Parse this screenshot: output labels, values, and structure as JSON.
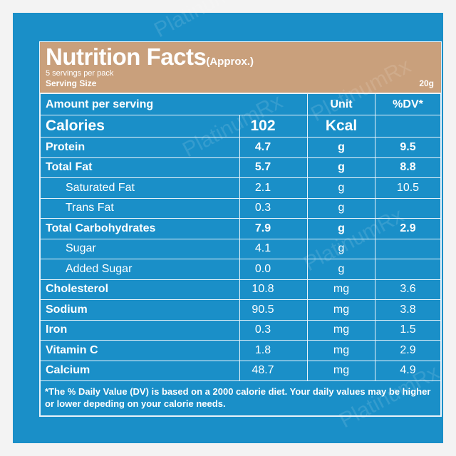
{
  "header": {
    "title": "Nutrition Facts",
    "title_suffix": "(Approx.)",
    "servings_per_pack": "5 servings per pack",
    "serving_size_label": "Serving Size",
    "serving_size_value": "20g"
  },
  "columns": {
    "amount": "Amount per serving",
    "unit": "Unit",
    "dv": "%DV*"
  },
  "calories": {
    "label": "Calories",
    "value": "102",
    "unit": "Kcal",
    "dv": ""
  },
  "rows": [
    {
      "label": "Protein",
      "value": "4.7",
      "unit": "g",
      "dv": "9.5"
    },
    {
      "label": "Total Fat",
      "value": "5.7",
      "unit": "g",
      "dv": "8.8"
    },
    {
      "label": "Saturated Fat",
      "value": "2.1",
      "unit": "g",
      "dv": "10.5"
    },
    {
      "label": "Trans Fat",
      "value": "0.3",
      "unit": "g",
      "dv": ""
    },
    {
      "label": "Total Carbohydrates",
      "value": "7.9",
      "unit": "g",
      "dv": "2.9"
    },
    {
      "label": "Sugar",
      "value": "4.1",
      "unit": "g",
      "dv": ""
    },
    {
      "label": "Added Sugar",
      "value": "0.0",
      "unit": "g",
      "dv": ""
    },
    {
      "label": "Cholesterol",
      "value": "10.8",
      "unit": "mg",
      "dv": "3.6"
    },
    {
      "label": "Sodium",
      "value": "90.5",
      "unit": "mg",
      "dv": "3.8"
    },
    {
      "label": "Iron",
      "value": "0.3",
      "unit": "mg",
      "dv": "1.5"
    },
    {
      "label": "Vitamin C",
      "value": "1.8",
      "unit": "mg",
      "dv": "2.9"
    },
    {
      "label": "Calcium",
      "value": "48.7",
      "unit": "mg",
      "dv": "4.9"
    }
  ],
  "footnote": "*The % Daily Value (DV) is based on a 2000 calorie diet. Your daily values may be higher or lower depeding on your calorie needs.",
  "watermark": "PlatinumRx",
  "colors": {
    "panel": "#1a8fc8",
    "header": "#c9a07c",
    "text": "#ffffff"
  }
}
